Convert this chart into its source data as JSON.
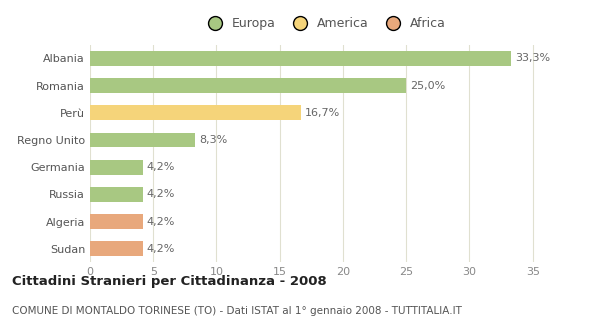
{
  "categories": [
    "Albania",
    "Romania",
    "Perù",
    "Regno Unito",
    "Germania",
    "Russia",
    "Algeria",
    "Sudan"
  ],
  "values": [
    33.3,
    25.0,
    16.7,
    8.3,
    4.2,
    4.2,
    4.2,
    4.2
  ],
  "labels": [
    "33,3%",
    "25,0%",
    "16,7%",
    "8,3%",
    "4,2%",
    "4,2%",
    "4,2%",
    "4,2%"
  ],
  "colors": [
    "#a8c882",
    "#a8c882",
    "#f5d47a",
    "#a8c882",
    "#a8c882",
    "#a8c882",
    "#e8a87c",
    "#e8a87c"
  ],
  "legend_labels": [
    "Europa",
    "America",
    "Africa"
  ],
  "legend_colors": [
    "#a8c882",
    "#f5d47a",
    "#e8a87c"
  ],
  "title_bold": "Cittadini Stranieri per Cittadinanza - 2008",
  "subtitle": "COMUNE DI MONTALDO TORINESE (TO) - Dati ISTAT al 1° gennaio 2008 - TUTTITALIA.IT",
  "xlim": [
    0,
    37
  ],
  "xticks": [
    0,
    5,
    10,
    15,
    20,
    25,
    30,
    35
  ],
  "background_color": "#ffffff",
  "grid_color": "#e0e0d0",
  "bar_height": 0.55,
  "label_fontsize": 8,
  "tick_fontsize": 8,
  "title_fontsize": 9.5,
  "subtitle_fontsize": 7.5,
  "ytick_fontsize": 8
}
